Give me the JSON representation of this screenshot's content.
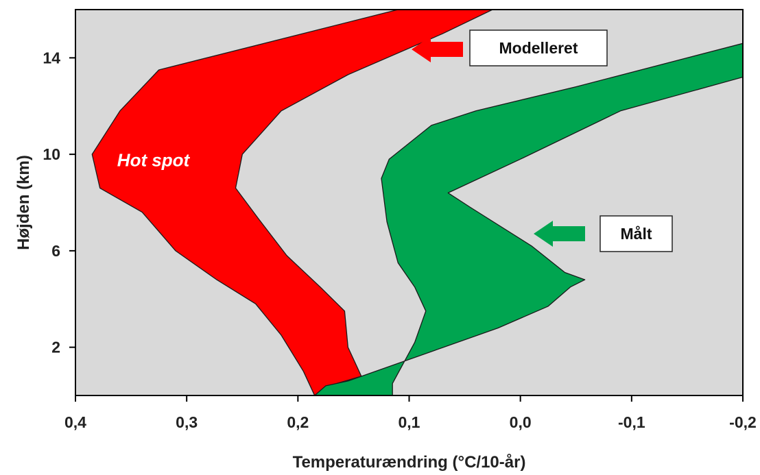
{
  "chart_data": {
    "type": "area",
    "title": "",
    "xlabel": "Temperaturændring (°C/10-år)",
    "ylabel": "Højden (km)",
    "xlim": [
      0.4,
      -0.2
    ],
    "ylim": [
      0,
      16
    ],
    "x_ticks": [
      0.4,
      0.3,
      0.2,
      0.1,
      0.0,
      -0.1,
      -0.2
    ],
    "x_tick_labels": [
      "0,4",
      "0,3",
      "0,2",
      "0,1",
      "0,0",
      "-0,1",
      "-0,2"
    ],
    "y_ticks": [
      2,
      6,
      10,
      14
    ],
    "y_tick_labels": [
      "2",
      "6",
      "10",
      "14"
    ],
    "grid": false,
    "background_color": "#d9d9d9",
    "series": [
      {
        "name": "Modelleret",
        "color": "#ff0000",
        "polygon": [
          [
            0.185,
            0.0
          ],
          [
            0.165,
            0.5
          ],
          [
            0.143,
            0.8
          ],
          [
            0.155,
            2.0
          ],
          [
            0.158,
            3.5
          ],
          [
            0.18,
            4.5
          ],
          [
            0.21,
            5.8
          ],
          [
            0.235,
            7.3
          ],
          [
            0.256,
            8.6
          ],
          [
            0.25,
            10.0
          ],
          [
            0.215,
            11.8
          ],
          [
            0.155,
            13.3
          ],
          [
            0.07,
            15.0
          ],
          [
            0.025,
            16.0
          ],
          [
            0.11,
            16.0
          ],
          [
            0.325,
            13.5
          ],
          [
            0.36,
            11.8
          ],
          [
            0.385,
            10.0
          ],
          [
            0.378,
            8.6
          ],
          [
            0.34,
            7.6
          ],
          [
            0.31,
            6.0
          ],
          [
            0.273,
            4.8
          ],
          [
            0.238,
            3.8
          ],
          [
            0.215,
            2.5
          ],
          [
            0.195,
            1.0
          ]
        ]
      },
      {
        "name": "Målt",
        "color": "#00a550",
        "polygon": [
          [
            0.185,
            0.0
          ],
          [
            0.175,
            0.4
          ],
          [
            0.155,
            0.6
          ],
          [
            0.02,
            2.8
          ],
          [
            -0.025,
            3.7
          ],
          [
            -0.045,
            4.5
          ],
          [
            -0.058,
            4.8
          ],
          [
            -0.04,
            5.1
          ],
          [
            -0.01,
            6.2
          ],
          [
            0.045,
            7.8
          ],
          [
            0.065,
            8.4
          ],
          [
            0.0,
            9.8
          ],
          [
            -0.09,
            11.8
          ],
          [
            -0.2,
            13.2
          ],
          [
            -0.2,
            14.6
          ],
          [
            -0.15,
            14.0
          ],
          [
            -0.05,
            12.8
          ],
          [
            0.04,
            11.8
          ],
          [
            0.08,
            11.2
          ],
          [
            0.118,
            9.8
          ],
          [
            0.125,
            9.0
          ],
          [
            0.12,
            7.2
          ],
          [
            0.11,
            5.5
          ],
          [
            0.095,
            4.5
          ],
          [
            0.085,
            3.5
          ],
          [
            0.095,
            2.2
          ],
          [
            0.115,
            0.5
          ],
          [
            0.115,
            0.0
          ]
        ]
      }
    ],
    "annotations": [
      {
        "text": "Hot spot",
        "x": 0.33,
        "y": 9.5,
        "color": "#ffffff"
      }
    ],
    "legend": [
      {
        "label": "Modelleret",
        "arrow_color": "#ff0000",
        "placement": "top-right"
      },
      {
        "label": "Målt",
        "arrow_color": "#00a550",
        "placement": "middle-right"
      }
    ]
  }
}
